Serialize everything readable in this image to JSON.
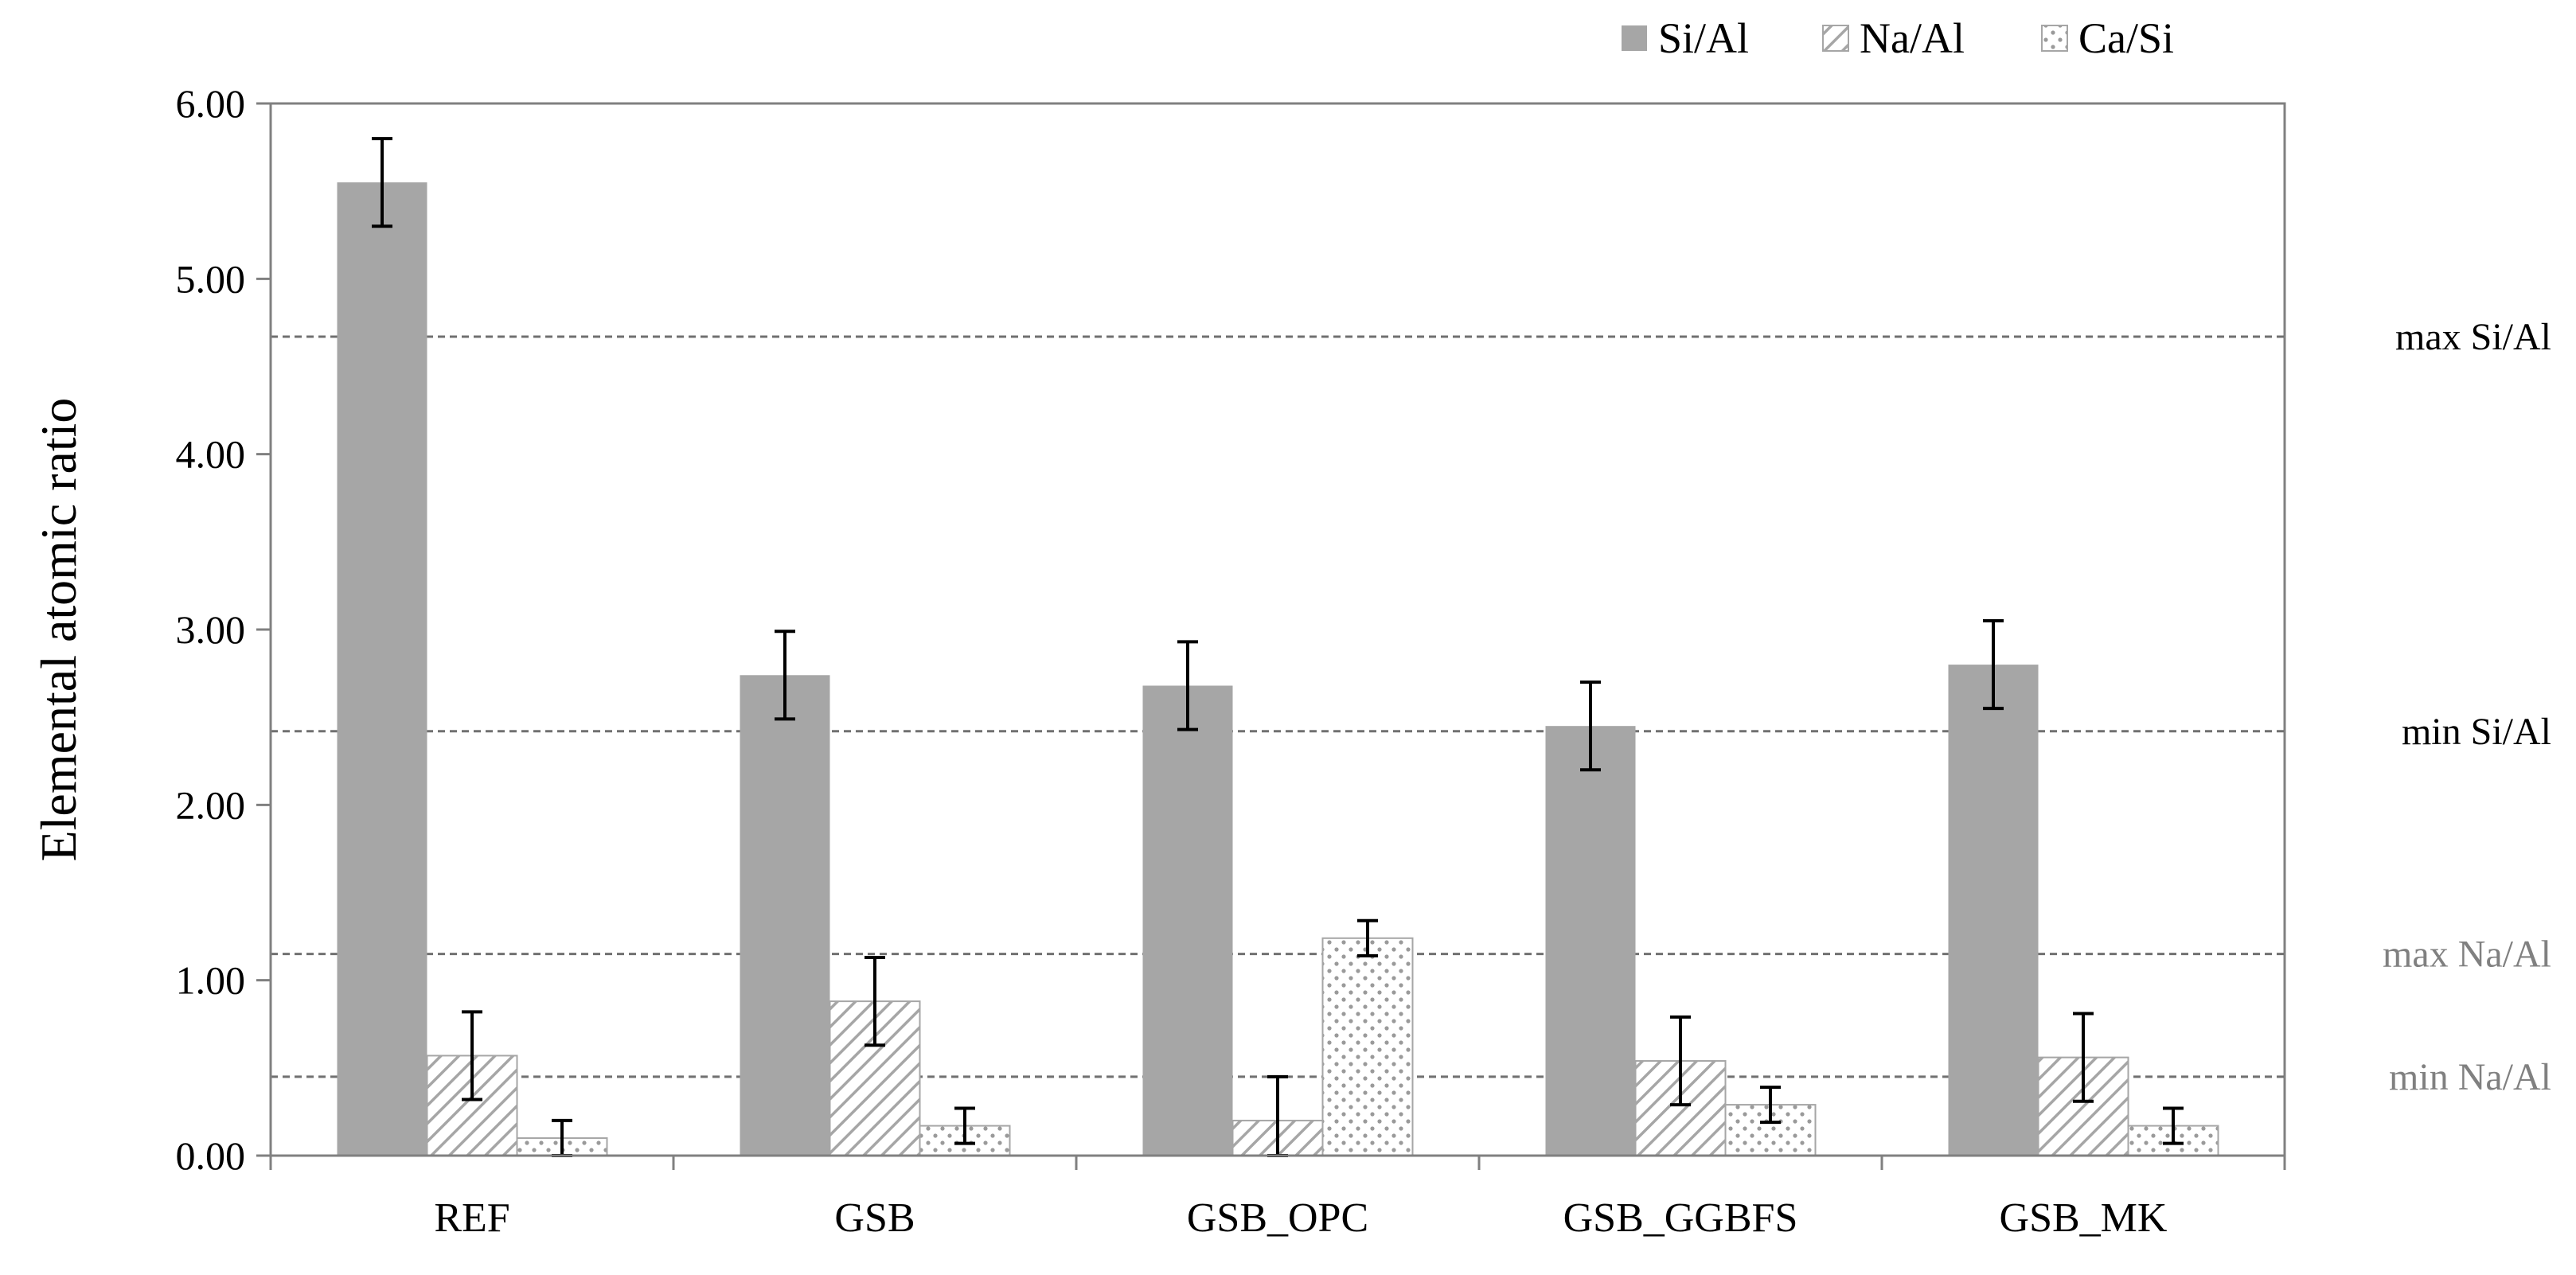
{
  "chart_data": {
    "type": "bar",
    "title": "",
    "xlabel": "",
    "ylabel": "Elemental atomic ratio",
    "ylim": [
      0,
      6
    ],
    "ytick_labels": [
      "0.00",
      "1.00",
      "2.00",
      "3.00",
      "4.00",
      "5.00",
      "6.00"
    ],
    "ytick_values": [
      0,
      1,
      2,
      3,
      4,
      5,
      6
    ],
    "categories": [
      "REF",
      "GSB",
      "GSB_OPC",
      "GSB_GGBFS",
      "GSB_MK"
    ],
    "series": [
      {
        "name": "Si/Al",
        "fill": "solid",
        "color": "#a6a6a6",
        "values": [
          5.55,
          2.74,
          2.68,
          2.45,
          2.8
        ],
        "errors": [
          0.25,
          0.25,
          0.25,
          0.25,
          0.25
        ]
      },
      {
        "name": "Na/Al",
        "fill": "diagonal-hatch",
        "color": "#a6a6a6",
        "values": [
          0.57,
          0.88,
          0.2,
          0.54,
          0.56
        ],
        "errors": [
          0.25,
          0.25,
          0.25,
          0.25,
          0.25
        ]
      },
      {
        "name": "Ca/Si",
        "fill": "dotted",
        "color": "#a6a6a6",
        "values": [
          0.1,
          0.17,
          1.24,
          0.29,
          0.17
        ],
        "errors": [
          0.1,
          0.1,
          0.1,
          0.1,
          0.1
        ]
      }
    ],
    "reference_lines": [
      {
        "label": "max Si/Al",
        "value": 4.67,
        "color": "#000000"
      },
      {
        "label": "min Si/Al",
        "value": 2.42,
        "color": "#000000"
      },
      {
        "label": "max Na/Al",
        "value": 1.15,
        "color": "#808080"
      },
      {
        "label": "min Na/Al",
        "value": 0.45,
        "color": "#808080"
      }
    ],
    "legend_position": "top-right",
    "grid": false
  }
}
